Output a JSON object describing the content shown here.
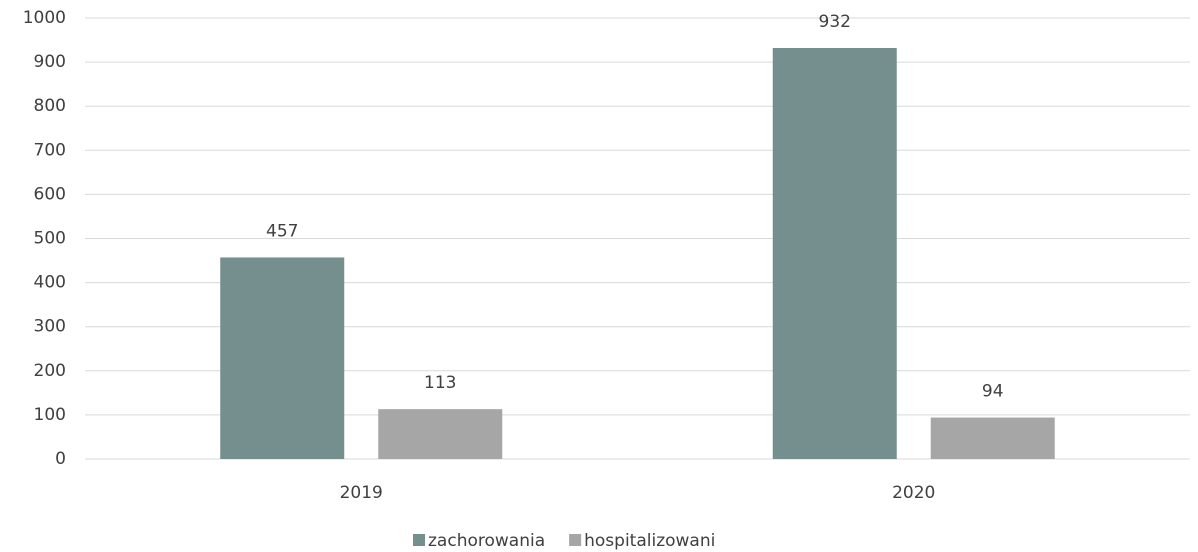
{
  "chart_data": {
    "type": "bar",
    "categories": [
      "2019",
      "2020"
    ],
    "series": [
      {
        "name": "zachorowania",
        "color": "#758f8e",
        "values": [
          457,
          932
        ]
      },
      {
        "name": "hospitalizowani",
        "color": "#a6a6a6",
        "values": [
          113,
          94
        ]
      }
    ],
    "ylim": [
      0,
      1000
    ],
    "yticks": [
      0,
      100,
      200,
      300,
      400,
      500,
      600,
      700,
      800,
      900,
      1000
    ],
    "grid": true,
    "legend": "bottom"
  }
}
